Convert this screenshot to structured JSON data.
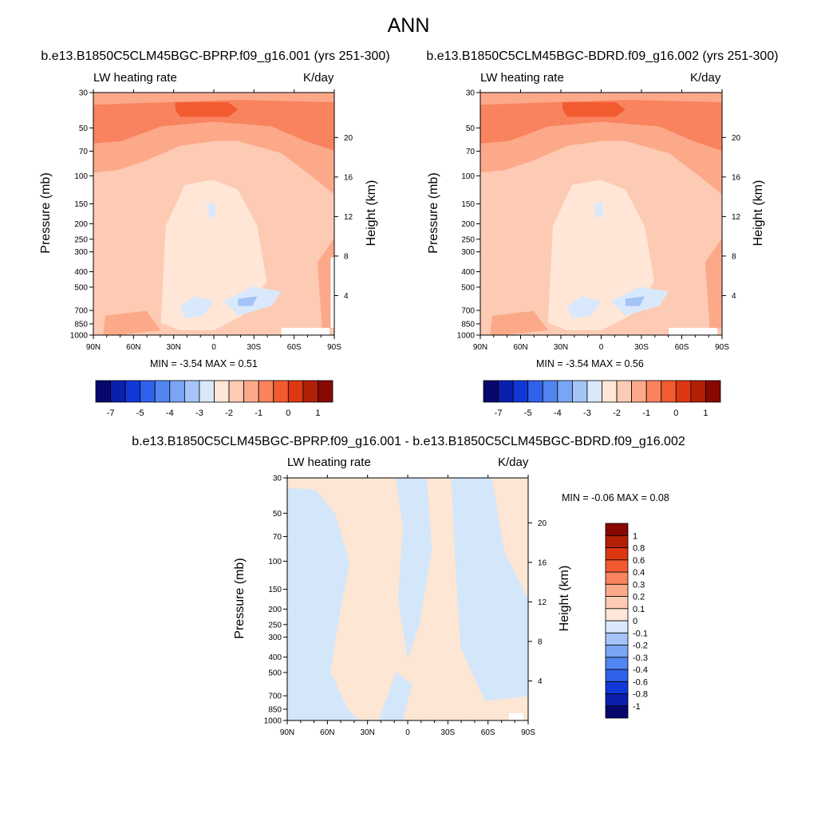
{
  "title": "ANN",
  "panels": [
    {
      "id": "p1",
      "title": "b.e13.B1850C5CLM45BGC-BPRP.f09_g16.001 (yrs 251-300)",
      "left_label": "LW heating rate",
      "right_label": "K/day",
      "ylabel": "Pressure (mb)",
      "ylabel_right": "Height (km)",
      "minmax": "MIN =  -3.54  MAX =   0.51"
    },
    {
      "id": "p2",
      "title": "b.e13.B1850C5CLM45BGC-BDRD.f09_g16.002 (yrs 251-300)",
      "left_label": "LW heating rate",
      "right_label": "K/day",
      "ylabel": "Pressure (mb)",
      "ylabel_right": "Height (km)",
      "minmax": "MIN =  -3.54  MAX =   0.56"
    },
    {
      "id": "p3",
      "title": "b.e13.B1850C5CLM45BGC-BPRP.f09_g16.001 - b.e13.B1850C5CLM45BGC-BDRD.f09_g16.002",
      "left_label": "LW heating rate",
      "right_label": "K/day",
      "ylabel": "Pressure (mb)",
      "ylabel_right": "Height (km)",
      "minmax": "MIN =  -0.06  MAX =   0.08"
    }
  ],
  "colorbar_main": {
    "colors": [
      "#08076e",
      "#0a1fae",
      "#1038d8",
      "#2e62ea",
      "#5185f0",
      "#7aa5f4",
      "#a4c4f8",
      "#d9e9fb",
      "#ffe6d6",
      "#fdcab3",
      "#fca98a",
      "#f8835e",
      "#f25b30",
      "#dc3711",
      "#b22006",
      "#880802"
    ],
    "labels": [
      "-7",
      "-5",
      "-4",
      "-3",
      "-2",
      "-1",
      "0",
      "1"
    ]
  },
  "colorbar_diff": {
    "colors": [
      "#08076e",
      "#0a1fae",
      "#1038d8",
      "#2e62ea",
      "#5185f0",
      "#7aa5f4",
      "#a4c4f8",
      "#d9e9fb",
      "#ffe6d6",
      "#fdcab3",
      "#fca98a",
      "#f8835e",
      "#f25b30",
      "#dc3711",
      "#b22006",
      "#880802"
    ],
    "labels": [
      "-1",
      "-0.8",
      "-0.6",
      "-0.4",
      "-0.3",
      "-0.2",
      "-0.1",
      "0",
      "0.1",
      "0.2",
      "0.3",
      "0.4",
      "0.6",
      "0.8",
      "1"
    ]
  },
  "chart_data": [
    {
      "type": "heatmap",
      "title": "b.e13.B1850C5CLM45BGC-BPRP.f09_g16.001 (yrs 251-300)",
      "subtitle_left": "LW heating rate",
      "units": "K/day",
      "xlabel": "",
      "ylabel": "Pressure (mb)",
      "ylabel_right": "Height (km)",
      "x_ticks": [
        "90N",
        "60N",
        "30N",
        "0",
        "30S",
        "60S",
        "90S"
      ],
      "y_ticks": [
        30,
        50,
        70,
        100,
        150,
        200,
        250,
        300,
        400,
        500,
        700,
        850,
        1000
      ],
      "y_right_ticks": [
        20,
        16,
        12,
        8,
        4
      ],
      "ylim": [
        1000,
        30
      ],
      "y_scale": "log",
      "levels": [
        -7,
        -5,
        -4,
        -3,
        -2,
        -1,
        0,
        1
      ],
      "min": -3.54,
      "max": 0.51
    },
    {
      "type": "heatmap",
      "title": "b.e13.B1850C5CLM45BGC-BDRD.f09_g16.002 (yrs 251-300)",
      "subtitle_left": "LW heating rate",
      "units": "K/day",
      "xlabel": "",
      "ylabel": "Pressure (mb)",
      "ylabel_right": "Height (km)",
      "x_ticks": [
        "90N",
        "60N",
        "30N",
        "0",
        "30S",
        "60S",
        "90S"
      ],
      "y_ticks": [
        30,
        50,
        70,
        100,
        150,
        200,
        250,
        300,
        400,
        500,
        700,
        850,
        1000
      ],
      "y_right_ticks": [
        20,
        16,
        12,
        8,
        4
      ],
      "ylim": [
        1000,
        30
      ],
      "y_scale": "log",
      "levels": [
        -7,
        -5,
        -4,
        -3,
        -2,
        -1,
        0,
        1
      ],
      "min": -3.54,
      "max": 0.56
    },
    {
      "type": "heatmap",
      "title": "b.e13.B1850C5CLM45BGC-BPRP.f09_g16.001 - b.e13.B1850C5CLM45BGC-BDRD.f09_g16.002",
      "subtitle_left": "LW heating rate",
      "units": "K/day",
      "xlabel": "",
      "ylabel": "Pressure (mb)",
      "ylabel_right": "Height (km)",
      "x_ticks": [
        "90N",
        "60N",
        "30N",
        "0",
        "30S",
        "60S",
        "90S"
      ],
      "y_ticks": [
        30,
        50,
        70,
        100,
        150,
        200,
        250,
        300,
        400,
        500,
        700,
        850,
        1000
      ],
      "y_right_ticks": [
        20,
        16,
        12,
        8,
        4
      ],
      "ylim": [
        1000,
        30
      ],
      "y_scale": "log",
      "levels": [
        -1,
        -0.8,
        -0.6,
        -0.4,
        -0.3,
        -0.2,
        -0.1,
        0,
        0.1,
        0.2,
        0.3,
        0.4,
        0.6,
        0.8,
        1
      ],
      "min": -0.06,
      "max": 0.08
    }
  ]
}
